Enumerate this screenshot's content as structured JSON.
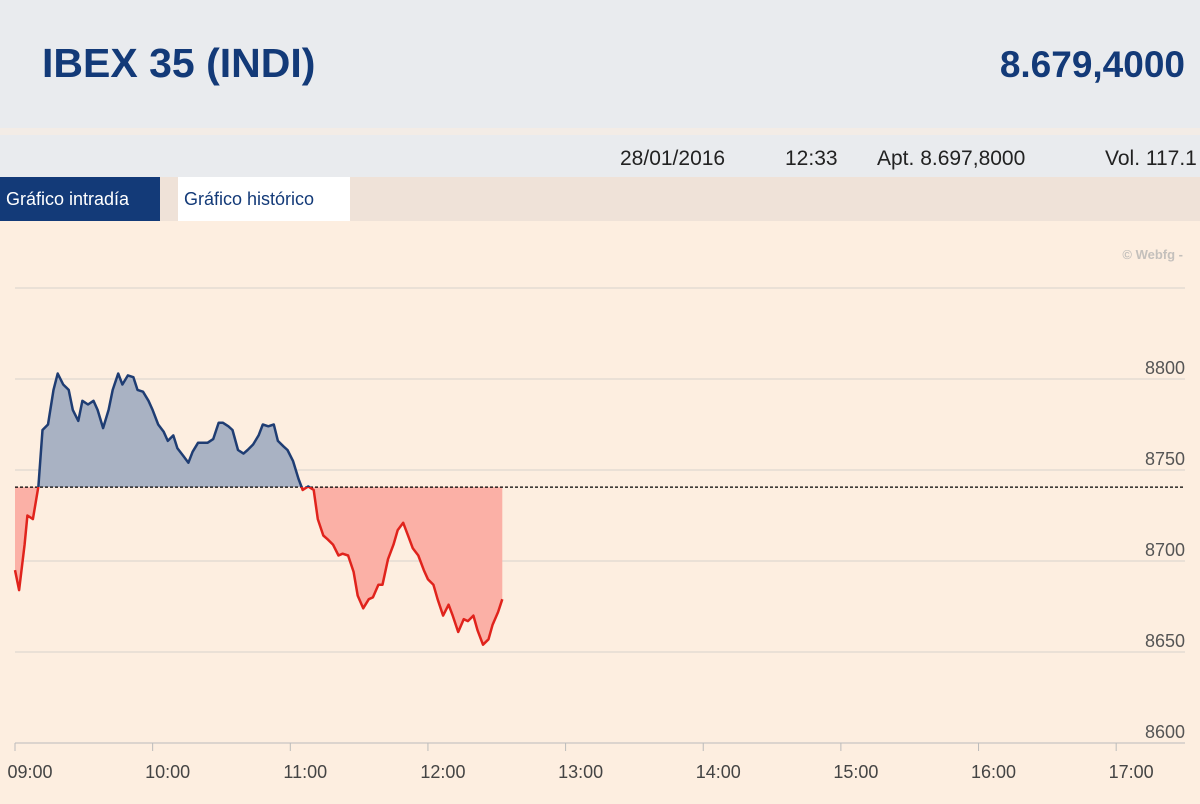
{
  "header": {
    "title": "IBEX 35 (INDI)",
    "value": "8.679,4000"
  },
  "info": {
    "date": "28/01/2016",
    "time": "12:33",
    "open": "Apt. 8.697,8000",
    "volume": "Vol. 117.1"
  },
  "tabs": [
    "Gráfico intradía",
    "Gráfico histórico"
  ],
  "chart_data": {
    "type": "area",
    "credit": "© Webfg -",
    "reference": 8740.6,
    "colors": {
      "line_above": "#1f3d73",
      "line_below": "#e0231c",
      "fill_above": "#a9b2c3",
      "fill_below": "#fbb0a6",
      "reference": "#000000"
    },
    "x": [
      9.0,
      9.03,
      9.07,
      9.09,
      9.13,
      9.17,
      9.2,
      9.24,
      9.28,
      9.31,
      9.35,
      9.39,
      9.42,
      9.46,
      9.49,
      9.53,
      9.57,
      9.6,
      9.64,
      9.68,
      9.71,
      9.75,
      9.78,
      9.82,
      9.86,
      9.89,
      9.93,
      9.97,
      10.0,
      10.04,
      10.08,
      10.11,
      10.15,
      10.18,
      10.22,
      10.26,
      10.29,
      10.33,
      10.37,
      10.4,
      10.44,
      10.48,
      10.51,
      10.55,
      10.58,
      10.62,
      10.66,
      10.69,
      10.73,
      10.77,
      10.8,
      10.84,
      10.88,
      10.91,
      10.95,
      10.98,
      11.02,
      11.06,
      11.09,
      11.13,
      11.17,
      11.2,
      11.24,
      11.27,
      11.31,
      11.35,
      11.38,
      11.42,
      11.46,
      11.49,
      11.53,
      11.57,
      11.6,
      11.64,
      11.67,
      11.71,
      11.75,
      11.78,
      11.82,
      11.86,
      11.89,
      11.93,
      11.97,
      12.0,
      12.04,
      12.07,
      12.11,
      12.15,
      12.18,
      12.22,
      12.26,
      12.29,
      12.33,
      12.36,
      12.4,
      12.44,
      12.47,
      12.51,
      12.54
    ],
    "values": [
      8695,
      8684,
      8709,
      8725,
      8723,
      8741,
      8772,
      8775,
      8794,
      8803,
      8797,
      8794,
      8783,
      8777,
      8788,
      8786,
      8788,
      8783,
      8773,
      8783,
      8794,
      8803,
      8797,
      8802,
      8801,
      8794,
      8793,
      8788,
      8783,
      8775,
      8771,
      8766,
      8769,
      8762,
      8758,
      8754,
      8760,
      8765,
      8765,
      8765,
      8767,
      8776,
      8776,
      8774,
      8772,
      8761,
      8759,
      8761,
      8764,
      8769,
      8775,
      8774,
      8775,
      8766,
      8763,
      8761,
      8755,
      8745,
      8739,
      8741,
      8739,
      8723,
      8714,
      8712,
      8709,
      8703,
      8704,
      8703,
      8694,
      8681,
      8674,
      8679,
      8680,
      8687,
      8687,
      8701,
      8709,
      8717,
      8721,
      8713,
      8707,
      8703,
      8695,
      8690,
      8687,
      8679,
      8670,
      8676,
      8670,
      8661,
      8668,
      8667,
      8670,
      8662,
      8654,
      8657,
      8665,
      8672,
      8679
    ],
    "xlim": [
      9,
      17.5
    ],
    "xticks": [
      {
        "value": 9,
        "label": "09:00"
      },
      {
        "value": 10,
        "label": "10:00"
      },
      {
        "value": 11,
        "label": "11:00"
      },
      {
        "value": 12,
        "label": "12:00"
      },
      {
        "value": 13,
        "label": "13:00"
      },
      {
        "value": 14,
        "label": "14:00"
      },
      {
        "value": 15,
        "label": "15:00"
      },
      {
        "value": 16,
        "label": "16:00"
      },
      {
        "value": 17,
        "label": "17:00"
      }
    ],
    "ylim": [
      8600,
      8850
    ],
    "yticks": [
      8600,
      8650,
      8700,
      8750,
      8800
    ],
    "grid": true
  }
}
